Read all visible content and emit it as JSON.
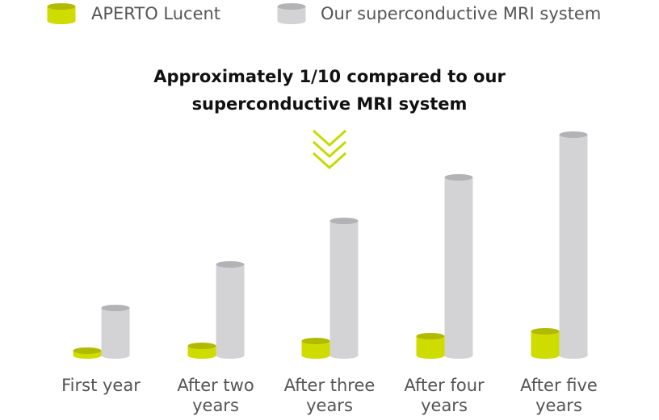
{
  "chart_data": {
    "type": "cylinder-bar",
    "annotation": "Approximately 1/10 compared to our superconductive MRI system",
    "categories": [
      "First year",
      "After two years",
      "After three years",
      "After four years",
      "After five years"
    ],
    "series": [
      {
        "name": "APERTO Lucent",
        "color": "#cfdc00",
        "values": [
          6,
          12,
          18,
          24,
          30
        ]
      },
      {
        "name": "Our superconductive MRI system",
        "color": "#d3d3d5",
        "values": [
          59,
          113,
          167,
          221,
          274
        ]
      }
    ],
    "ylim": [
      0,
      300
    ]
  }
}
